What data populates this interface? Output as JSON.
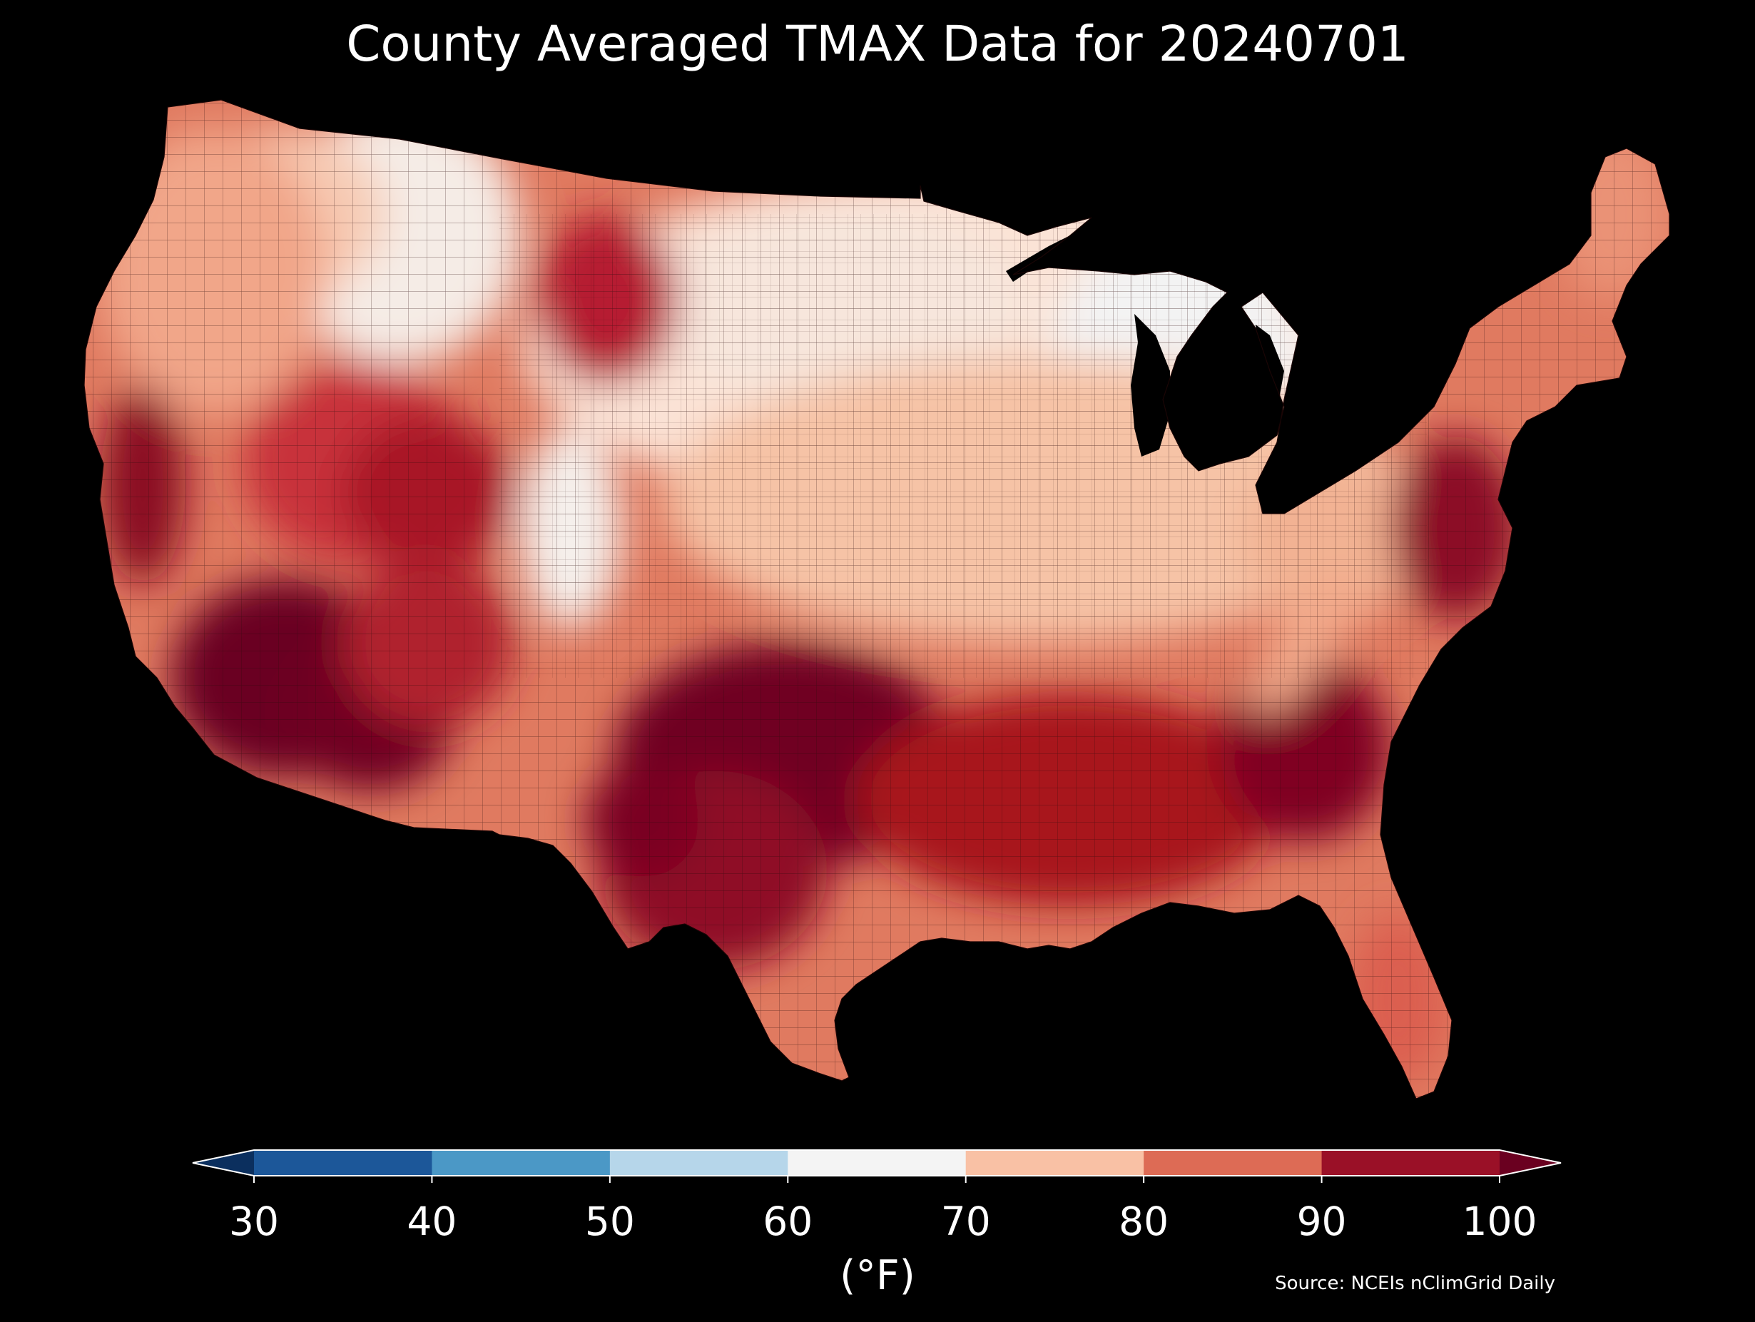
{
  "title": "County Averaged TMAX Data for 20240701",
  "colorbar": {
    "label": "(°F)",
    "ticks": [
      "30",
      "40",
      "50",
      "60",
      "70",
      "80",
      "90",
      "100"
    ],
    "bins": [
      {
        "range": "<30",
        "color": "#0b2f5e"
      },
      {
        "range": "30-40",
        "color": "#1c5799"
      },
      {
        "range": "40-50",
        "color": "#4b98c6"
      },
      {
        "range": "50-60",
        "color": "#b6d6ea"
      },
      {
        "range": "60-70",
        "color": "#f4f4f4"
      },
      {
        "range": "70-80",
        "color": "#f9c1a5"
      },
      {
        "range": "80-90",
        "color": "#dd6b55"
      },
      {
        "range": "90-100",
        "color": "#9a1027"
      },
      {
        "range": ">100",
        "color": "#6a0020"
      }
    ],
    "extend": "both"
  },
  "source": "Source: NCEIs nClimGrid Daily",
  "map": {
    "region": "Contiguous United States",
    "variable": "TMAX",
    "units": "°F",
    "date": "20240701",
    "background": "#000000",
    "regions": [
      {
        "name": "Pacific Northwest coast",
        "class": "70-80"
      },
      {
        "name": "Northern Rockies",
        "class": "60-70"
      },
      {
        "name": "Central/Northern California interior",
        "class": "90-100"
      },
      {
        "name": "Great Basin",
        "class": "80-90"
      },
      {
        "name": "Desert Southwest",
        "class": ">100"
      },
      {
        "name": "Wyoming basins",
        "class": "80-90"
      },
      {
        "name": "Colorado Rockies",
        "class": "60-70"
      },
      {
        "name": "Northern Plains",
        "class": "70-80"
      },
      {
        "name": "Upper Midwest / Great Lakes",
        "class": "60-70"
      },
      {
        "name": "Ohio Valley",
        "class": "70-80"
      },
      {
        "name": "Appalachians",
        "class": "70-80"
      },
      {
        "name": "Southern Plains / Texas",
        "class": ">100"
      },
      {
        "name": "Gulf Coast / Southeast",
        "class": "90-100"
      },
      {
        "name": "Mid-Atlantic / Carolinas",
        "class": "90-100"
      },
      {
        "name": "Northeast / New England",
        "class": "80-90"
      },
      {
        "name": "Florida",
        "class": "80-90"
      }
    ]
  }
}
